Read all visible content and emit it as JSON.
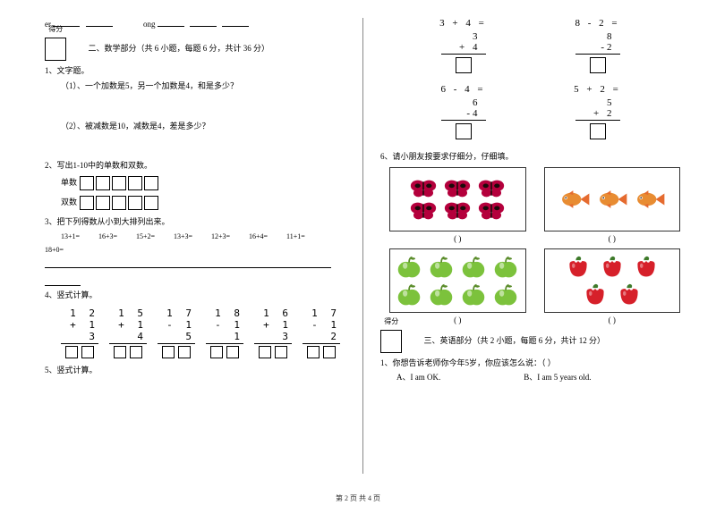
{
  "left": {
    "pinyin_row": {
      "p1": "er",
      "p2": "ong"
    },
    "score_label": "得分",
    "section2_title": "二、数学部分（共 6 小题，每题 6 分，共计 36 分）",
    "q1": "1、文字题。",
    "q1_1": "（1）、一个加数是5，另一个加数是4，和是多少？",
    "q1_2": "（2）、被减数是10，减数是4，差是多少？",
    "q2": "2、写出1-10中的单数和双数。",
    "q2_odd_label": "单数",
    "q2_even_label": "双数",
    "q3": "3、把下列得数从小到大排列出来。",
    "arith": [
      "13+1=",
      "16+3=",
      "15+2=",
      "13+3=",
      "12+3=",
      "16+4=",
      "11+1="
    ],
    "arith_tail": "18+0=",
    "q4": "4、竖式计算。",
    "vmath": [
      {
        "a": "1 2",
        "b": "+ 1 3"
      },
      {
        "a": "1 5",
        "b": "+ 1 4"
      },
      {
        "a": "1 7",
        "b": "- 1 5"
      },
      {
        "a": "1 8",
        "b": "- 1 1"
      },
      {
        "a": "1 6",
        "b": "+ 1 3"
      },
      {
        "a": "1 7",
        "b": "- 1 2"
      }
    ],
    "q5": "5、竖式计算。"
  },
  "right": {
    "rvmath": [
      {
        "expr": "3 + 4 =",
        "l1": "3",
        "l2": "+  4"
      },
      {
        "expr": "8 - 2 =",
        "l1": "8",
        "l2": "-2"
      },
      {
        "expr": "6 - 4 =",
        "l1": "6",
        "l2": "-4"
      },
      {
        "expr": "5 + 2 =",
        "l1": "5",
        "l2": "+  2"
      }
    ],
    "q6": "6、请小朋友按要求仔细分，仔细填。",
    "caption": "(                    )",
    "counts": {
      "butterfly": 6,
      "fish": 3,
      "apple": 8,
      "pepper": 5
    },
    "colors": {
      "butterfly_wing": "#b4003c",
      "butterfly_body": "#1a0a0a",
      "fish_body": "#e88c32",
      "fish_fin": "#e56b2f",
      "apple_body": "#7cc23c",
      "apple_top": "#5a8c2a",
      "pepper_body": "#d6202a",
      "pepper_stem": "#3e7a2a"
    },
    "score_label": "得分",
    "section3_title": "三、英语部分（共 2 小题，每题 6 分，共计 12 分）",
    "eq1": "1、你想告诉老师你今年5岁，你应该怎么说：（        ）",
    "eq1_a": "A、I am OK.",
    "eq1_b": "B、I am 5 years old."
  },
  "footer": "第 2 页 共 4 页"
}
